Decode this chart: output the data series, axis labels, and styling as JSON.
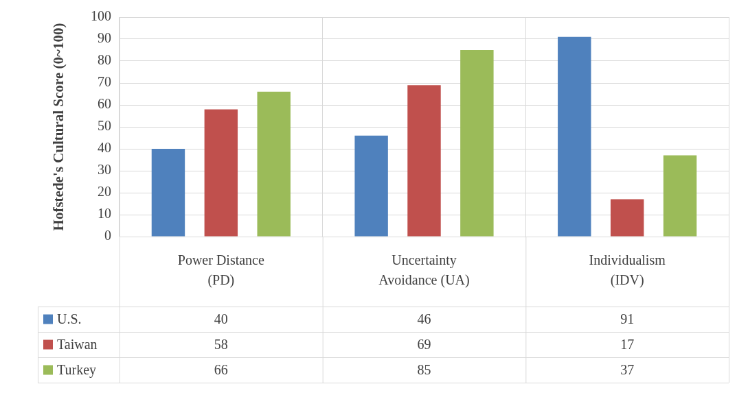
{
  "chart_data": {
    "type": "bar",
    "ylabel": "Hofstede's Cultural Score (0~100)",
    "categories": [
      "Power Distance (PD)",
      "Uncertainty Avoidance (UA)",
      "Individualism (IDV)"
    ],
    "series": [
      {
        "name": "U.S.",
        "color": "#4f81bd",
        "values": [
          40,
          46,
          91
        ]
      },
      {
        "name": "Taiwan",
        "color": "#c0504d",
        "values": [
          58,
          69,
          17
        ]
      },
      {
        "name": "Turkey",
        "color": "#9bbb59",
        "values": [
          66,
          85,
          37
        ]
      }
    ],
    "ylim": [
      0,
      100
    ],
    "yticks": [
      0,
      10,
      20,
      30,
      40,
      50,
      60,
      70,
      80,
      90,
      100
    ],
    "grid": true,
    "legend": "bottom left",
    "data_labels": true
  }
}
